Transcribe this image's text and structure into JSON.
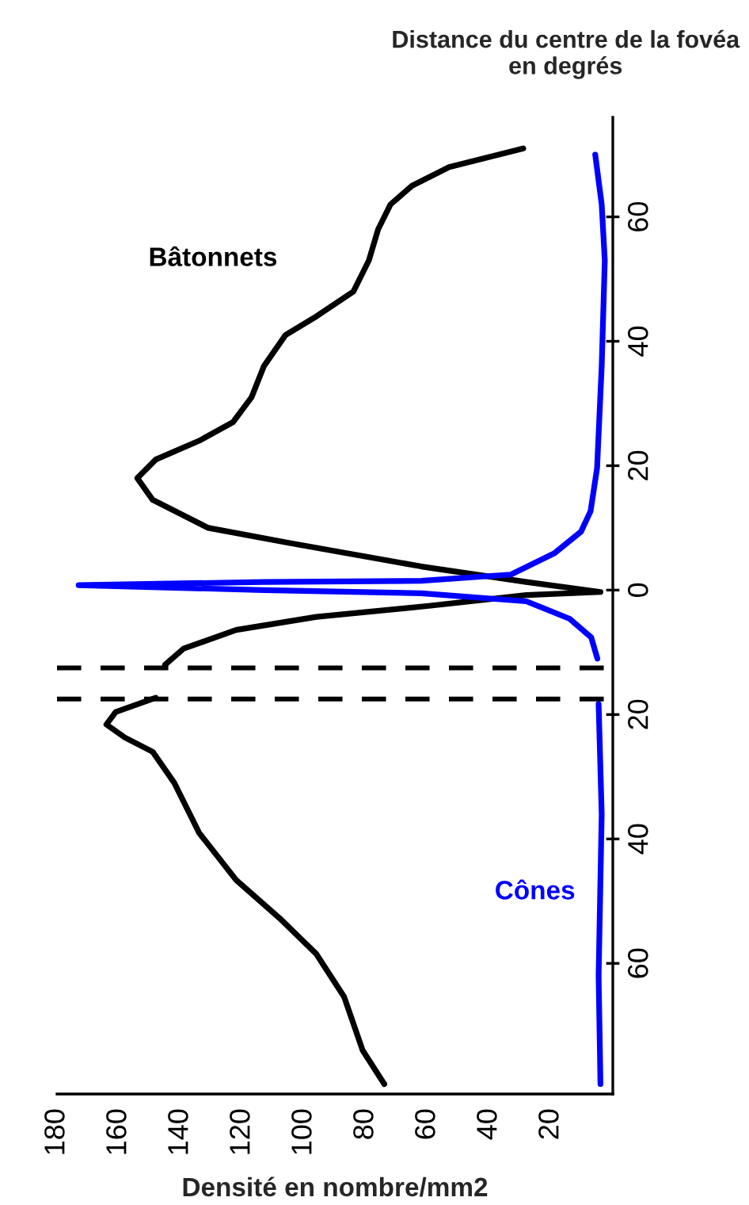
{
  "chart_data": {
    "type": "line",
    "orientation": "horizontal",
    "xlabel": "Densité en nombre/mm2",
    "ylabel": "Distance du centre de la fovéa\nen degrés",
    "series": [
      {
        "name": "Bâtonnets",
        "color": "#000000",
        "x": [
          71,
          68,
          65,
          62,
          58,
          53,
          48,
          44,
          41,
          36,
          31,
          27,
          24,
          21,
          18,
          14.5,
          10,
          7.6,
          3.8,
          1.3,
          -0.3,
          -0.8,
          -2.5,
          -4.3,
          -6.4,
          -9.4,
          -12,
          null,
          -17.3,
          -19.6,
          -21.6,
          -23.7,
          -26,
          -31,
          -39,
          -46.6,
          -52.7,
          -58.5,
          -65.4,
          -74,
          -79.4
        ],
        "values": [
          29,
          53,
          65,
          72,
          76,
          79,
          84,
          96,
          106,
          113,
          117,
          123,
          134,
          148,
          154,
          149,
          131,
          105,
          62,
          28,
          4,
          28,
          59,
          96,
          122,
          139,
          145,
          null,
          148,
          161,
          164,
          158,
          149,
          142,
          134,
          122,
          108,
          96,
          87,
          81,
          74
        ]
      },
      {
        "name": "Cônes",
        "color": "#0000ff",
        "x": [
          70,
          62,
          53,
          36,
          19.6,
          12.7,
          9.4,
          5.9,
          2.5,
          1.5,
          1.3,
          0.8,
          0,
          -0.5,
          -1.8,
          -4.6,
          -7.6,
          -11,
          null,
          -18.3,
          -36,
          -62,
          -79.4
        ],
        "values": [
          5.7,
          3.6,
          2.6,
          3.6,
          5.1,
          7.2,
          10.3,
          19,
          33,
          62,
          113,
          173,
          113,
          62,
          28,
          14,
          7,
          5,
          null,
          4.6,
          3.6,
          4.6,
          4
        ]
      }
    ],
    "xlim": [
      180,
      0
    ],
    "xticks": [
      180,
      160,
      140,
      120,
      100,
      80,
      60,
      40,
      20
    ],
    "ylim": [
      -81,
      76
    ],
    "yticks": [
      {
        "value": -60,
        "label": "60"
      },
      {
        "value": -40,
        "label": "40"
      },
      {
        "value": -20,
        "label": "20"
      },
      0,
      20,
      40,
      60
    ],
    "ref_lines": [
      {
        "axis": "y",
        "value": -12.5,
        "line_style": "dashed",
        "color": "#000000"
      },
      {
        "axis": "y",
        "value": -17.5,
        "line_style": "dashed",
        "color": "#000000"
      }
    ],
    "grid": false,
    "legend": false,
    "marker": "none",
    "line_style": "solid"
  }
}
